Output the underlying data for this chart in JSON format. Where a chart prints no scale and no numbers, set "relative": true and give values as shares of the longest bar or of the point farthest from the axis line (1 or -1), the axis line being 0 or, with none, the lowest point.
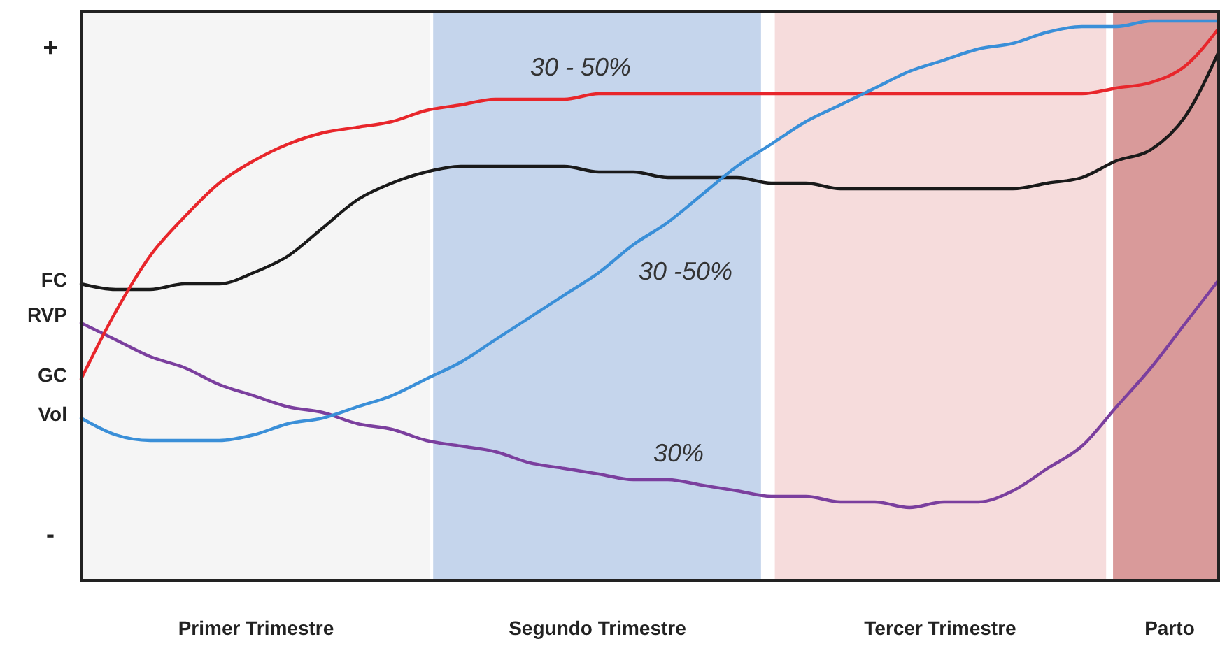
{
  "chart_data": {
    "type": "line",
    "relative": true,
    "categories": [
      null,
      null,
      null,
      null,
      null,
      null,
      null,
      null,
      null,
      null,
      null,
      null,
      null,
      null,
      null,
      null,
      null,
      null,
      null,
      null,
      null,
      null,
      null,
      null,
      null,
      null,
      null,
      null,
      null,
      null,
      null,
      null,
      null,
      null
    ],
    "series": [
      {
        "name": "FC",
        "color": "#1a1a1a",
        "values": [
          0.53,
          0.52,
          0.52,
          0.53,
          0.53,
          0.55,
          0.58,
          0.63,
          0.68,
          0.71,
          0.73,
          0.74,
          0.74,
          0.74,
          0.74,
          0.73,
          0.73,
          0.72,
          0.72,
          0.72,
          0.71,
          0.71,
          0.7,
          0.7,
          0.7,
          0.7,
          0.7,
          0.7,
          0.71,
          0.72,
          0.75,
          0.77,
          0.83,
          0.95
        ]
      },
      {
        "name": "RVP",
        "color": "#7b3f9e",
        "values": [
          0.46,
          0.43,
          0.4,
          0.38,
          0.35,
          0.33,
          0.31,
          0.3,
          0.28,
          0.27,
          0.25,
          0.24,
          0.23,
          0.21,
          0.2,
          0.19,
          0.18,
          0.18,
          0.17,
          0.16,
          0.15,
          0.15,
          0.14,
          0.14,
          0.13,
          0.14,
          0.14,
          0.16,
          0.2,
          0.24,
          0.31,
          0.38,
          0.46,
          0.54
        ]
      },
      {
        "name": "GC",
        "color": "#e8262b",
        "values": [
          0.36,
          0.48,
          0.58,
          0.65,
          0.71,
          0.75,
          0.78,
          0.8,
          0.81,
          0.82,
          0.84,
          0.85,
          0.86,
          0.86,
          0.86,
          0.87,
          0.87,
          0.87,
          0.87,
          0.87,
          0.87,
          0.87,
          0.87,
          0.87,
          0.87,
          0.87,
          0.87,
          0.87,
          0.87,
          0.87,
          0.88,
          0.89,
          0.92,
          0.99
        ]
      },
      {
        "name": "Vol",
        "color": "#3a8fd8",
        "values": [
          0.29,
          0.26,
          0.25,
          0.25,
          0.25,
          0.26,
          0.28,
          0.29,
          0.31,
          0.33,
          0.36,
          0.39,
          0.43,
          0.47,
          0.51,
          0.55,
          0.6,
          0.64,
          0.69,
          0.74,
          0.78,
          0.82,
          0.85,
          0.88,
          0.91,
          0.93,
          0.95,
          0.96,
          0.98,
          0.99,
          0.99,
          1,
          1,
          1
        ]
      }
    ],
    "annotations": [
      "+",
      "-",
      "30 - 50%",
      "30 -50%",
      "30%",
      "Primer Trimestre",
      "Segundo Trimestre",
      "Tercer Trimestre",
      "Parto"
    ]
  }
}
